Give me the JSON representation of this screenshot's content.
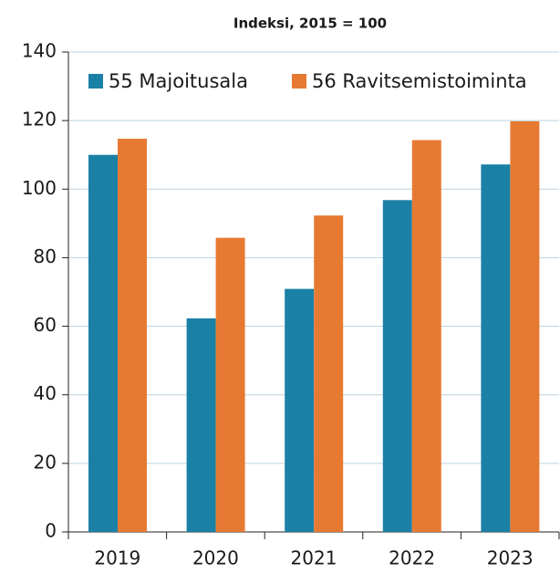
{
  "chart_data": {
    "type": "bar",
    "title": "Indeksi, 2015 = 100",
    "categories": [
      "2019",
      "2020",
      "2021",
      "2022",
      "2023"
    ],
    "series": [
      {
        "name": "55 Majoitusala",
        "color": "#1b80a6",
        "values": [
          110,
          62.3,
          70.9,
          96.8,
          107.2
        ]
      },
      {
        "name": "56 Ravitsemistoiminta",
        "color": "#e77a33",
        "values": [
          114.7,
          85.8,
          92.3,
          114.3,
          119.8
        ]
      }
    ],
    "ylim": [
      0,
      140
    ],
    "yticks": [
      0,
      20,
      40,
      60,
      80,
      100,
      120,
      140
    ],
    "grid": true,
    "legend": "top"
  }
}
